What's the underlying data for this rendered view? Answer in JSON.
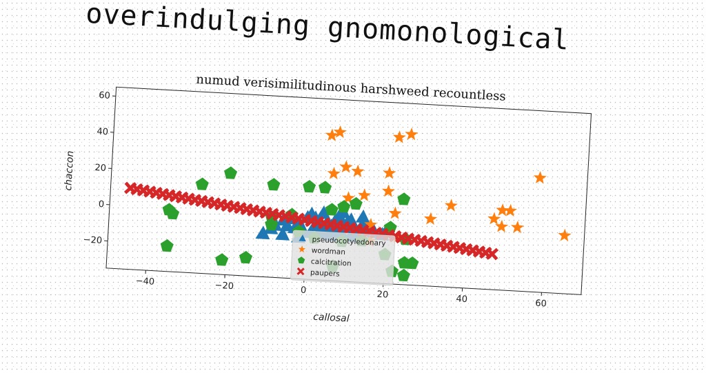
{
  "page": {
    "main_title": "overindulging gnomonological"
  },
  "chart_data": {
    "type": "scatter",
    "title": "numud verisimilitudinous harshweed recountless",
    "xlabel": "callosal",
    "ylabel": "chaccon",
    "xlim": [
      -50,
      70
    ],
    "ylim": [
      -35,
      65
    ],
    "xticks": [
      -40,
      -20,
      0,
      20,
      40,
      60
    ],
    "yticks": [
      -20,
      0,
      20,
      40,
      60
    ],
    "grid": false,
    "legend_position": "lower-center",
    "series": [
      {
        "name": "pseudocotyledonary",
        "marker": "triangle",
        "color": "#1f77b4",
        "points": [
          [
            -8,
            -6
          ],
          [
            -6,
            -3
          ],
          [
            -4,
            -2
          ],
          [
            -2,
            -4
          ],
          [
            0,
            -1
          ],
          [
            1,
            1
          ],
          [
            2,
            -5
          ],
          [
            3,
            -2
          ],
          [
            4,
            -6
          ],
          [
            5,
            -3
          ],
          [
            6,
            -5
          ],
          [
            7,
            -2
          ],
          [
            8,
            -6
          ],
          [
            9,
            -4
          ],
          [
            10,
            -3
          ],
          [
            11,
            -1
          ],
          [
            12,
            -5
          ],
          [
            13,
            -7
          ],
          [
            14,
            -3
          ],
          [
            15,
            -6
          ],
          [
            16,
            -4
          ],
          [
            17,
            -7
          ],
          [
            19,
            -8
          ],
          [
            20,
            -6
          ],
          [
            -3,
            -7
          ],
          [
            -1,
            -8
          ],
          [
            1,
            -9
          ],
          [
            3,
            -9
          ],
          [
            5,
            -8
          ],
          [
            7,
            -9
          ],
          [
            9,
            -9
          ],
          [
            11,
            -10
          ],
          [
            13,
            -9
          ],
          [
            -11,
            -11
          ],
          [
            -6,
            -11
          ],
          [
            -2,
            -12
          ],
          [
            6,
            -10
          ],
          [
            8,
            1
          ],
          [
            9,
            3
          ],
          [
            14,
            1
          ],
          [
            4,
            2
          ],
          [
            2,
            -1
          ],
          [
            -5,
            -6
          ],
          [
            -9,
            -8
          ]
        ]
      },
      {
        "name": "wordman",
        "marker": "star",
        "color": "#ff7f0e",
        "points": [
          [
            5,
            45
          ],
          [
            7,
            47
          ],
          [
            22,
            46
          ],
          [
            25,
            48
          ],
          [
            6,
            24
          ],
          [
            9,
            28
          ],
          [
            12,
            26
          ],
          [
            20,
            26
          ],
          [
            10,
            11
          ],
          [
            14,
            13
          ],
          [
            20,
            16
          ],
          [
            22,
            4
          ],
          [
            31,
            2
          ],
          [
            36,
            10
          ],
          [
            47,
            4
          ],
          [
            49,
            9
          ],
          [
            51,
            9
          ],
          [
            49,
            0
          ],
          [
            53,
            0
          ],
          [
            58,
            28
          ],
          [
            65,
            -3
          ],
          [
            16,
            -12
          ],
          [
            23,
            -9
          ],
          [
            16,
            -3
          ]
        ]
      },
      {
        "name": "calcitration",
        "marker": "pentagon",
        "color": "#2ca02c",
        "points": [
          [
            -35,
            -1
          ],
          [
            -34,
            -3
          ],
          [
            -35,
            -21
          ],
          [
            -27,
            14
          ],
          [
            -20,
            21
          ],
          [
            -15,
            -25
          ],
          [
            -21,
            -27
          ],
          [
            -9,
            -6
          ],
          [
            -9,
            -2
          ],
          [
            -9,
            16
          ],
          [
            -4,
            0
          ],
          [
            0,
            16
          ],
          [
            4,
            16
          ],
          [
            6,
            4
          ],
          [
            9,
            6
          ],
          [
            12,
            8
          ],
          [
            9,
            -13
          ],
          [
            21,
            -4
          ],
          [
            24,
            12
          ],
          [
            25,
            -10
          ],
          [
            25,
            -23
          ],
          [
            27,
            -23
          ],
          [
            25,
            -30
          ],
          [
            22,
            -28
          ],
          [
            14,
            -12
          ],
          [
            20,
            -19
          ],
          [
            2,
            -12
          ],
          [
            7,
            -27
          ],
          [
            -2,
            -9
          ]
        ]
      },
      {
        "name": "paupers",
        "marker": "x",
        "color": "#d62728",
        "points": []
      }
    ],
    "paupers_line": {
      "x_start": -45,
      "x_end": 47,
      "y_start": 9.8,
      "y_end": -15.3,
      "count": 57
    }
  }
}
